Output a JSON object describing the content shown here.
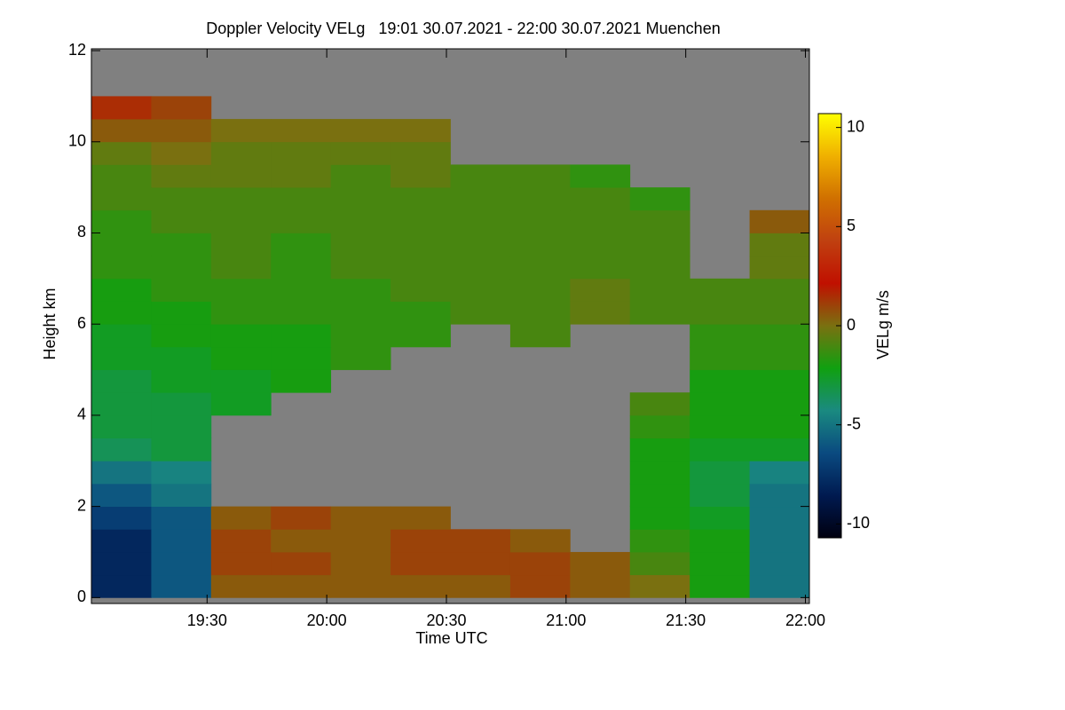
{
  "chart_data": {
    "type": "heatmap",
    "title": "Doppler Velocity VELg   19:01 30.07.2021 - 22:00 30.07.2021 Muenchen",
    "x_label": "Time UTC",
    "y_label": "Height km",
    "colorbar_label": "VELg m/s",
    "xlim": [
      19.0167,
      22.0167
    ],
    "xticks": [
      {
        "value": 19.5,
        "label": "19:30"
      },
      {
        "value": 20,
        "label": "20:00"
      },
      {
        "value": 20.5,
        "label": "20:30"
      },
      {
        "value": 21,
        "label": "21:00"
      },
      {
        "value": 21.5,
        "label": "21:30"
      },
      {
        "value": 22,
        "label": "22:00"
      }
    ],
    "ylim": [
      -0.13,
      12.04
    ],
    "yticks": [
      0,
      2,
      4,
      6,
      8,
      10,
      12
    ],
    "clim": [
      -10.7,
      10.7
    ],
    "cticks": [
      -10,
      -5,
      0,
      5,
      10
    ],
    "colormap": [
      "#000010",
      "#001a50",
      "#0a4a80",
      "#1a8a80",
      "#10a010",
      "#7a7010",
      "#c01000",
      "#c04010",
      "#d07000",
      "#f0b000",
      "#ffff00"
    ],
    "background": "#808080",
    "x_bins": [
      19.0167,
      19.2667,
      19.5167,
      19.7667,
      20.0167,
      20.2667,
      20.5167,
      20.7667,
      21.0167,
      21.2667,
      21.5167,
      21.7667,
      22.0167
    ],
    "y_bins": [
      0,
      0.5,
      1,
      1.5,
      2,
      2.5,
      3,
      3.5,
      4,
      4.5,
      5,
      5.5,
      6,
      6.5,
      7,
      7.5,
      8,
      8.5,
      9,
      9.5,
      10,
      10.5,
      11,
      11.5,
      12
    ],
    "z": [
      [
        -8,
        -6,
        0.5,
        0.5,
        0.5,
        0.5,
        0.5,
        1,
        0.5,
        0,
        -2,
        -5
      ],
      [
        -8,
        -6,
        1,
        1,
        0.5,
        1,
        1,
        1,
        0.5,
        -1,
        -2,
        -5
      ],
      [
        -8,
        -6,
        1,
        0.5,
        0.5,
        1,
        1,
        0.5,
        null,
        -1.5,
        -2,
        -5
      ],
      [
        -7,
        -6,
        0.5,
        1,
        0.5,
        0.5,
        null,
        null,
        null,
        -2,
        -2.5,
        -5
      ],
      [
        -6,
        -5,
        null,
        null,
        null,
        null,
        null,
        null,
        null,
        -2,
        -3,
        -5
      ],
      [
        -5,
        -4.5,
        null,
        null,
        null,
        null,
        null,
        null,
        null,
        -2,
        -3,
        -4.5
      ],
      [
        -3.5,
        -3,
        null,
        null,
        null,
        null,
        null,
        null,
        null,
        -2,
        -2.5,
        -2.5
      ],
      [
        -3,
        -3,
        null,
        null,
        null,
        null,
        null,
        null,
        null,
        -1.5,
        -2,
        -2
      ],
      [
        -3,
        -3,
        -2.5,
        null,
        null,
        null,
        null,
        null,
        null,
        -1,
        -2,
        -2
      ],
      [
        -3,
        -2.5,
        -2.5,
        -2,
        null,
        null,
        null,
        null,
        null,
        null,
        -2,
        -2
      ],
      [
        -2.5,
        -2.5,
        -2,
        -2,
        -1.5,
        null,
        null,
        null,
        null,
        null,
        -1.5,
        -1.5
      ],
      [
        -2.5,
        -2,
        -2,
        -2,
        -1.5,
        -1.5,
        null,
        -1,
        null,
        null,
        -1.5,
        -1.5
      ],
      [
        -2,
        -2,
        -1.5,
        -1.5,
        -1.5,
        -1.5,
        -1,
        -1,
        -0.5,
        -1,
        -1,
        -1
      ],
      [
        -2,
        -1.5,
        -1.5,
        -1.5,
        -1.5,
        -1,
        -1,
        -1,
        -0.5,
        -1,
        -1,
        -1
      ],
      [
        -1.5,
        -1.5,
        -1,
        -1.5,
        -1,
        -1,
        -1,
        -1,
        -1,
        -1,
        null,
        -0.5
      ],
      [
        -1.5,
        -1.5,
        -1,
        -1.5,
        -1,
        -1,
        -1,
        -1,
        -1,
        -1,
        null,
        -0.5
      ],
      [
        -1.5,
        -1,
        -1,
        -1,
        -1,
        -1,
        -1,
        -1,
        -1,
        -1,
        null,
        0.5
      ],
      [
        -1,
        -1,
        -1,
        -1,
        -1,
        -1,
        -1,
        -1,
        -1,
        -1.5,
        null,
        null
      ],
      [
        -1,
        -0.5,
        -0.5,
        -0.5,
        -1,
        -0.5,
        -1,
        -1,
        -1.5,
        null,
        null,
        null
      ],
      [
        -0.5,
        0,
        -0.5,
        -0.5,
        -0.5,
        -0.5,
        null,
        null,
        null,
        null,
        null,
        null
      ],
      [
        0.5,
        0.5,
        0,
        0,
        0,
        0,
        null,
        null,
        null,
        null,
        null,
        null
      ],
      [
        1.5,
        1,
        null,
        null,
        null,
        null,
        null,
        null,
        null,
        null,
        null,
        null
      ],
      [
        null,
        null,
        null,
        null,
        null,
        null,
        null,
        null,
        null,
        null,
        null,
        null
      ],
      [
        null,
        null,
        null,
        null,
        null,
        null,
        null,
        null,
        null,
        null,
        null,
        null
      ]
    ]
  }
}
